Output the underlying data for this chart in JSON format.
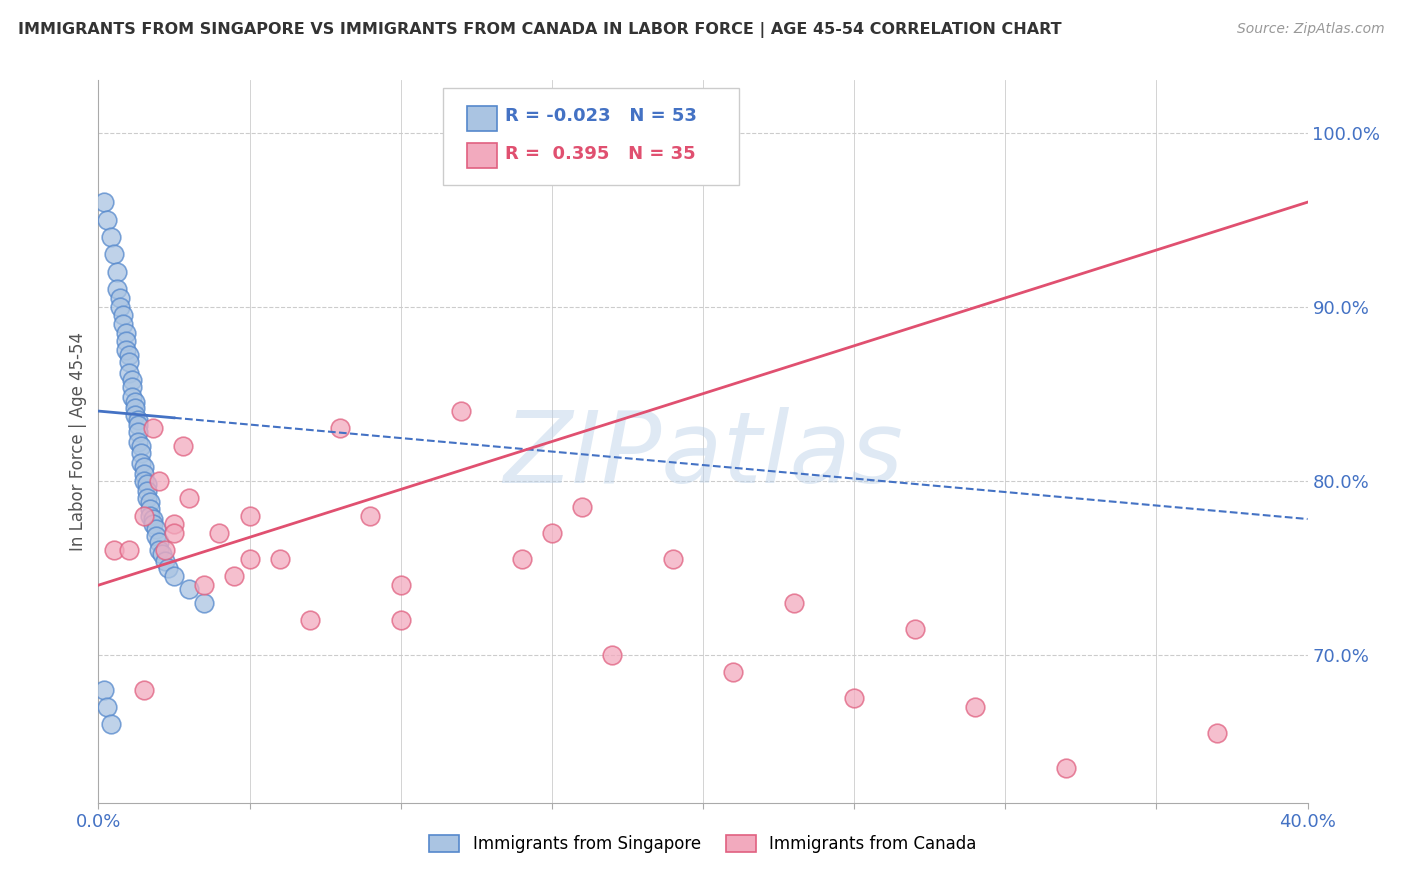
{
  "title": "IMMIGRANTS FROM SINGAPORE VS IMMIGRANTS FROM CANADA IN LABOR FORCE | AGE 45-54 CORRELATION CHART",
  "source": "Source: ZipAtlas.com",
  "ylabel": "In Labor Force | Age 45-54",
  "xlim": [
    0.0,
    0.4
  ],
  "ylim": [
    0.615,
    1.03
  ],
  "xtick_positions": [
    0.0,
    0.05,
    0.1,
    0.15,
    0.2,
    0.25,
    0.3,
    0.35,
    0.4
  ],
  "xtick_labels": [
    "0.0%",
    "",
    "",
    "",
    "",
    "",
    "",
    "",
    "40.0%"
  ],
  "yticks_right": [
    0.7,
    0.8,
    0.9,
    1.0
  ],
  "ytick_labels_right": [
    "70.0%",
    "80.0%",
    "90.0%",
    "100.0%"
  ],
  "r_singapore": -0.023,
  "n_singapore": 53,
  "r_canada": 0.395,
  "n_canada": 35,
  "color_singapore_fill": "#aac4e2",
  "color_canada_fill": "#f2aabe",
  "color_singapore_edge": "#5588cc",
  "color_canada_edge": "#e06080",
  "color_sg_line": "#4472c4",
  "color_ca_line": "#e05070",
  "watermark": "ZIPatlas",
  "background_color": "#ffffff",
  "grid_color": "#cccccc",
  "sg_x": [
    0.002,
    0.003,
    0.004,
    0.005,
    0.006,
    0.006,
    0.007,
    0.007,
    0.008,
    0.008,
    0.009,
    0.009,
    0.009,
    0.01,
    0.01,
    0.01,
    0.011,
    0.011,
    0.011,
    0.012,
    0.012,
    0.012,
    0.013,
    0.013,
    0.013,
    0.013,
    0.014,
    0.014,
    0.014,
    0.015,
    0.015,
    0.015,
    0.016,
    0.016,
    0.016,
    0.017,
    0.017,
    0.017,
    0.018,
    0.018,
    0.019,
    0.019,
    0.02,
    0.02,
    0.021,
    0.022,
    0.023,
    0.025,
    0.03,
    0.035,
    0.002,
    0.003,
    0.004
  ],
  "sg_y": [
    0.96,
    0.95,
    0.94,
    0.93,
    0.92,
    0.91,
    0.905,
    0.9,
    0.895,
    0.89,
    0.885,
    0.88,
    0.875,
    0.872,
    0.868,
    0.862,
    0.858,
    0.854,
    0.848,
    0.845,
    0.842,
    0.838,
    0.835,
    0.832,
    0.828,
    0.822,
    0.82,
    0.816,
    0.81,
    0.808,
    0.804,
    0.8,
    0.798,
    0.794,
    0.79,
    0.788,
    0.784,
    0.78,
    0.778,
    0.775,
    0.772,
    0.768,
    0.765,
    0.76,
    0.758,
    0.754,
    0.75,
    0.745,
    0.738,
    0.73,
    0.68,
    0.67,
    0.66
  ],
  "ca_x": [
    0.005,
    0.01,
    0.015,
    0.018,
    0.02,
    0.022,
    0.025,
    0.028,
    0.03,
    0.035,
    0.04,
    0.045,
    0.05,
    0.06,
    0.07,
    0.08,
    0.09,
    0.1,
    0.12,
    0.14,
    0.15,
    0.16,
    0.17,
    0.19,
    0.21,
    0.23,
    0.25,
    0.27,
    0.29,
    0.32,
    0.025,
    0.05,
    0.1,
    0.37,
    0.015
  ],
  "ca_y": [
    0.76,
    0.76,
    0.78,
    0.83,
    0.8,
    0.76,
    0.775,
    0.82,
    0.79,
    0.74,
    0.77,
    0.745,
    0.78,
    0.755,
    0.72,
    0.83,
    0.78,
    0.74,
    0.84,
    0.755,
    0.77,
    0.785,
    0.7,
    0.755,
    0.69,
    0.73,
    0.675,
    0.715,
    0.67,
    0.635,
    0.77,
    0.755,
    0.72,
    0.655,
    0.68
  ],
  "sg_line_x0": 0.0,
  "sg_line_x1": 0.4,
  "sg_line_y0": 0.84,
  "sg_line_y1": 0.778,
  "ca_line_x0": 0.0,
  "ca_line_x1": 0.4,
  "ca_line_y0": 0.74,
  "ca_line_y1": 0.96
}
